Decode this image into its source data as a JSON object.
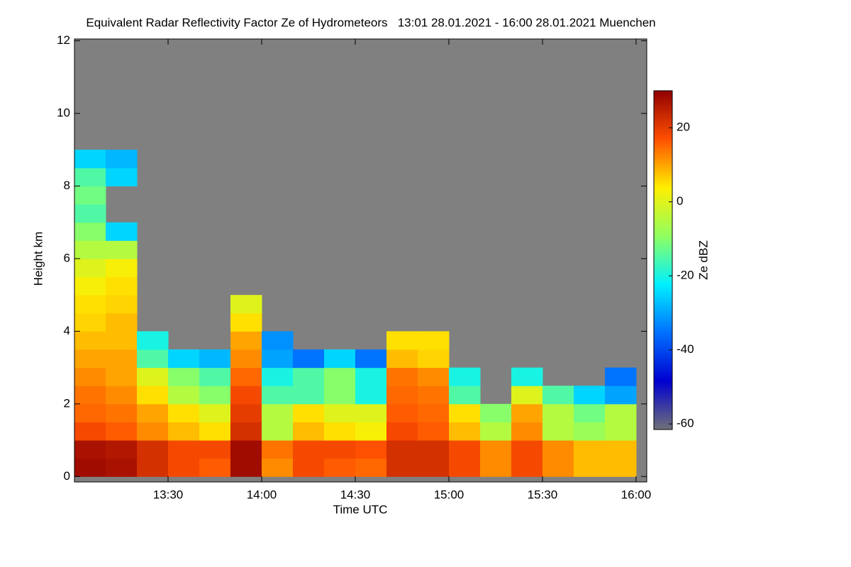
{
  "chart_data": {
    "type": "heatmap",
    "title": "Equivalent Radar Reflectivity Factor Ze of Hydrometeors   13:01 28.01.2021 - 16:00 28.01.2021 Muenchen",
    "x_label": "Time UTC",
    "y_label": "Height km",
    "colorbar_label": "Ze dBZ",
    "xbins": [
      13,
      13.1667,
      13.3333,
      13.5,
      13.6667,
      13.8333,
      14,
      14.1667,
      14.3333,
      14.5,
      14.6667,
      14.8333,
      15,
      15.1667,
      15.3333,
      15.5,
      15.6667,
      15.8333,
      16
    ],
    "ybins": [
      0,
      0.5,
      1,
      1.5,
      2,
      2.5,
      3,
      3.5,
      4,
      4.5,
      5,
      5.5,
      6,
      6.5,
      7,
      7.5,
      8,
      8.5,
      9,
      9.5,
      10
    ],
    "z": [
      [
        28,
        27,
        18,
        15,
        14,
        12,
        10,
        8,
        6,
        5,
        3,
        0,
        -5,
        -10,
        -15,
        -12,
        -15,
        -25,
        null,
        null
      ],
      [
        27,
        26,
        16,
        14,
        12,
        10,
        10,
        8,
        8,
        6,
        5,
        3,
        -5,
        -25,
        null,
        null,
        -25,
        -28,
        null,
        null
      ],
      [
        22,
        22,
        12,
        10,
        5,
        0,
        -15,
        -20,
        null,
        null,
        null,
        null,
        null,
        null,
        null,
        null,
        null,
        null,
        null,
        null
      ],
      [
        18,
        18,
        8,
        5,
        -5,
        -10,
        -25,
        null,
        null,
        null,
        null,
        null,
        null,
        null,
        null,
        null,
        null,
        null,
        null,
        null
      ],
      [
        16,
        18,
        5,
        0,
        -10,
        -15,
        -28,
        null,
        null,
        null,
        null,
        null,
        null,
        null,
        null,
        null,
        null,
        null,
        null,
        null
      ],
      [
        28,
        28,
        22,
        20,
        18,
        15,
        12,
        10,
        5,
        0,
        null,
        null,
        null,
        null,
        null,
        null,
        null,
        null,
        null,
        null
      ],
      [
        12,
        14,
        -5,
        -5,
        -15,
        -20,
        -30,
        -32,
        null,
        null,
        null,
        null,
        null,
        null,
        null,
        null,
        null,
        null,
        null,
        null
      ],
      [
        18,
        18,
        8,
        5,
        -15,
        -15,
        -35,
        null,
        null,
        null,
        null,
        null,
        null,
        null,
        null,
        null,
        null,
        null,
        null,
        null
      ],
      [
        16,
        18,
        5,
        0,
        -10,
        -10,
        -25,
        null,
        null,
        null,
        null,
        null,
        null,
        null,
        null,
        null,
        null,
        null,
        null,
        null
      ],
      [
        15,
        17,
        3,
        0,
        -20,
        -20,
        -35,
        null,
        null,
        null,
        null,
        null,
        null,
        null,
        null,
        null,
        null,
        null,
        null,
        null
      ],
      [
        22,
        22,
        18,
        16,
        15,
        14,
        8,
        5,
        null,
        null,
        null,
        null,
        null,
        null,
        null,
        null,
        null,
        null,
        null,
        null
      ],
      [
        22,
        22,
        16,
        15,
        14,
        12,
        6,
        5,
        null,
        null,
        null,
        null,
        null,
        null,
        null,
        null,
        null,
        null,
        null,
        null
      ],
      [
        18,
        18,
        8,
        5,
        -15,
        -20,
        null,
        null,
        null,
        null,
        null,
        null,
        null,
        null,
        null,
        null,
        null,
        null,
        null,
        null
      ],
      [
        12,
        12,
        -5,
        -10,
        null,
        null,
        null,
        null,
        null,
        null,
        null,
        null,
        null,
        null,
        null,
        null,
        null,
        null,
        null,
        null
      ],
      [
        18,
        18,
        12,
        10,
        0,
        -20,
        null,
        null,
        null,
        null,
        null,
        null,
        null,
        null,
        null,
        null,
        null,
        null,
        null,
        null
      ],
      [
        12,
        12,
        -5,
        -5,
        -15,
        null,
        null,
        null,
        null,
        null,
        null,
        null,
        null,
        null,
        null,
        null,
        null,
        null,
        null,
        null
      ],
      [
        8,
        8,
        -8,
        -12,
        -25,
        null,
        null,
        null,
        null,
        null,
        null,
        null,
        null,
        null,
        null,
        null,
        null,
        null,
        null,
        null
      ],
      [
        8,
        8,
        -5,
        -5,
        -30,
        -35,
        null,
        null,
        null,
        null,
        null,
        null,
        null,
        null,
        null,
        null,
        null,
        null,
        null,
        null
      ]
    ],
    "xlim": [
      13.0,
      16.057
    ],
    "xticks": [
      {
        "value": 13.5,
        "label": "13:30"
      },
      {
        "value": 14,
        "label": "14:00"
      },
      {
        "value": 14.5,
        "label": "14:30"
      },
      {
        "value": 15,
        "label": "15:00"
      },
      {
        "value": 15.5,
        "label": "15:30"
      },
      {
        "value": 16,
        "label": "16:00"
      }
    ],
    "ylim": [
      -0.15,
      12.05
    ],
    "yticks": [
      0,
      2,
      4,
      6,
      8,
      10,
      12
    ],
    "zlim": [
      -61.5,
      30
    ],
    "zticks": [
      -60,
      -40,
      -20,
      0,
      20
    ],
    "colormap": [
      "#707078",
      "#0000d0",
      "#0070ff",
      "#00f0ff",
      "#90ff60",
      "#ffee00",
      "#ff5000",
      "#900000"
    ],
    "missing_color": "#808080"
  }
}
